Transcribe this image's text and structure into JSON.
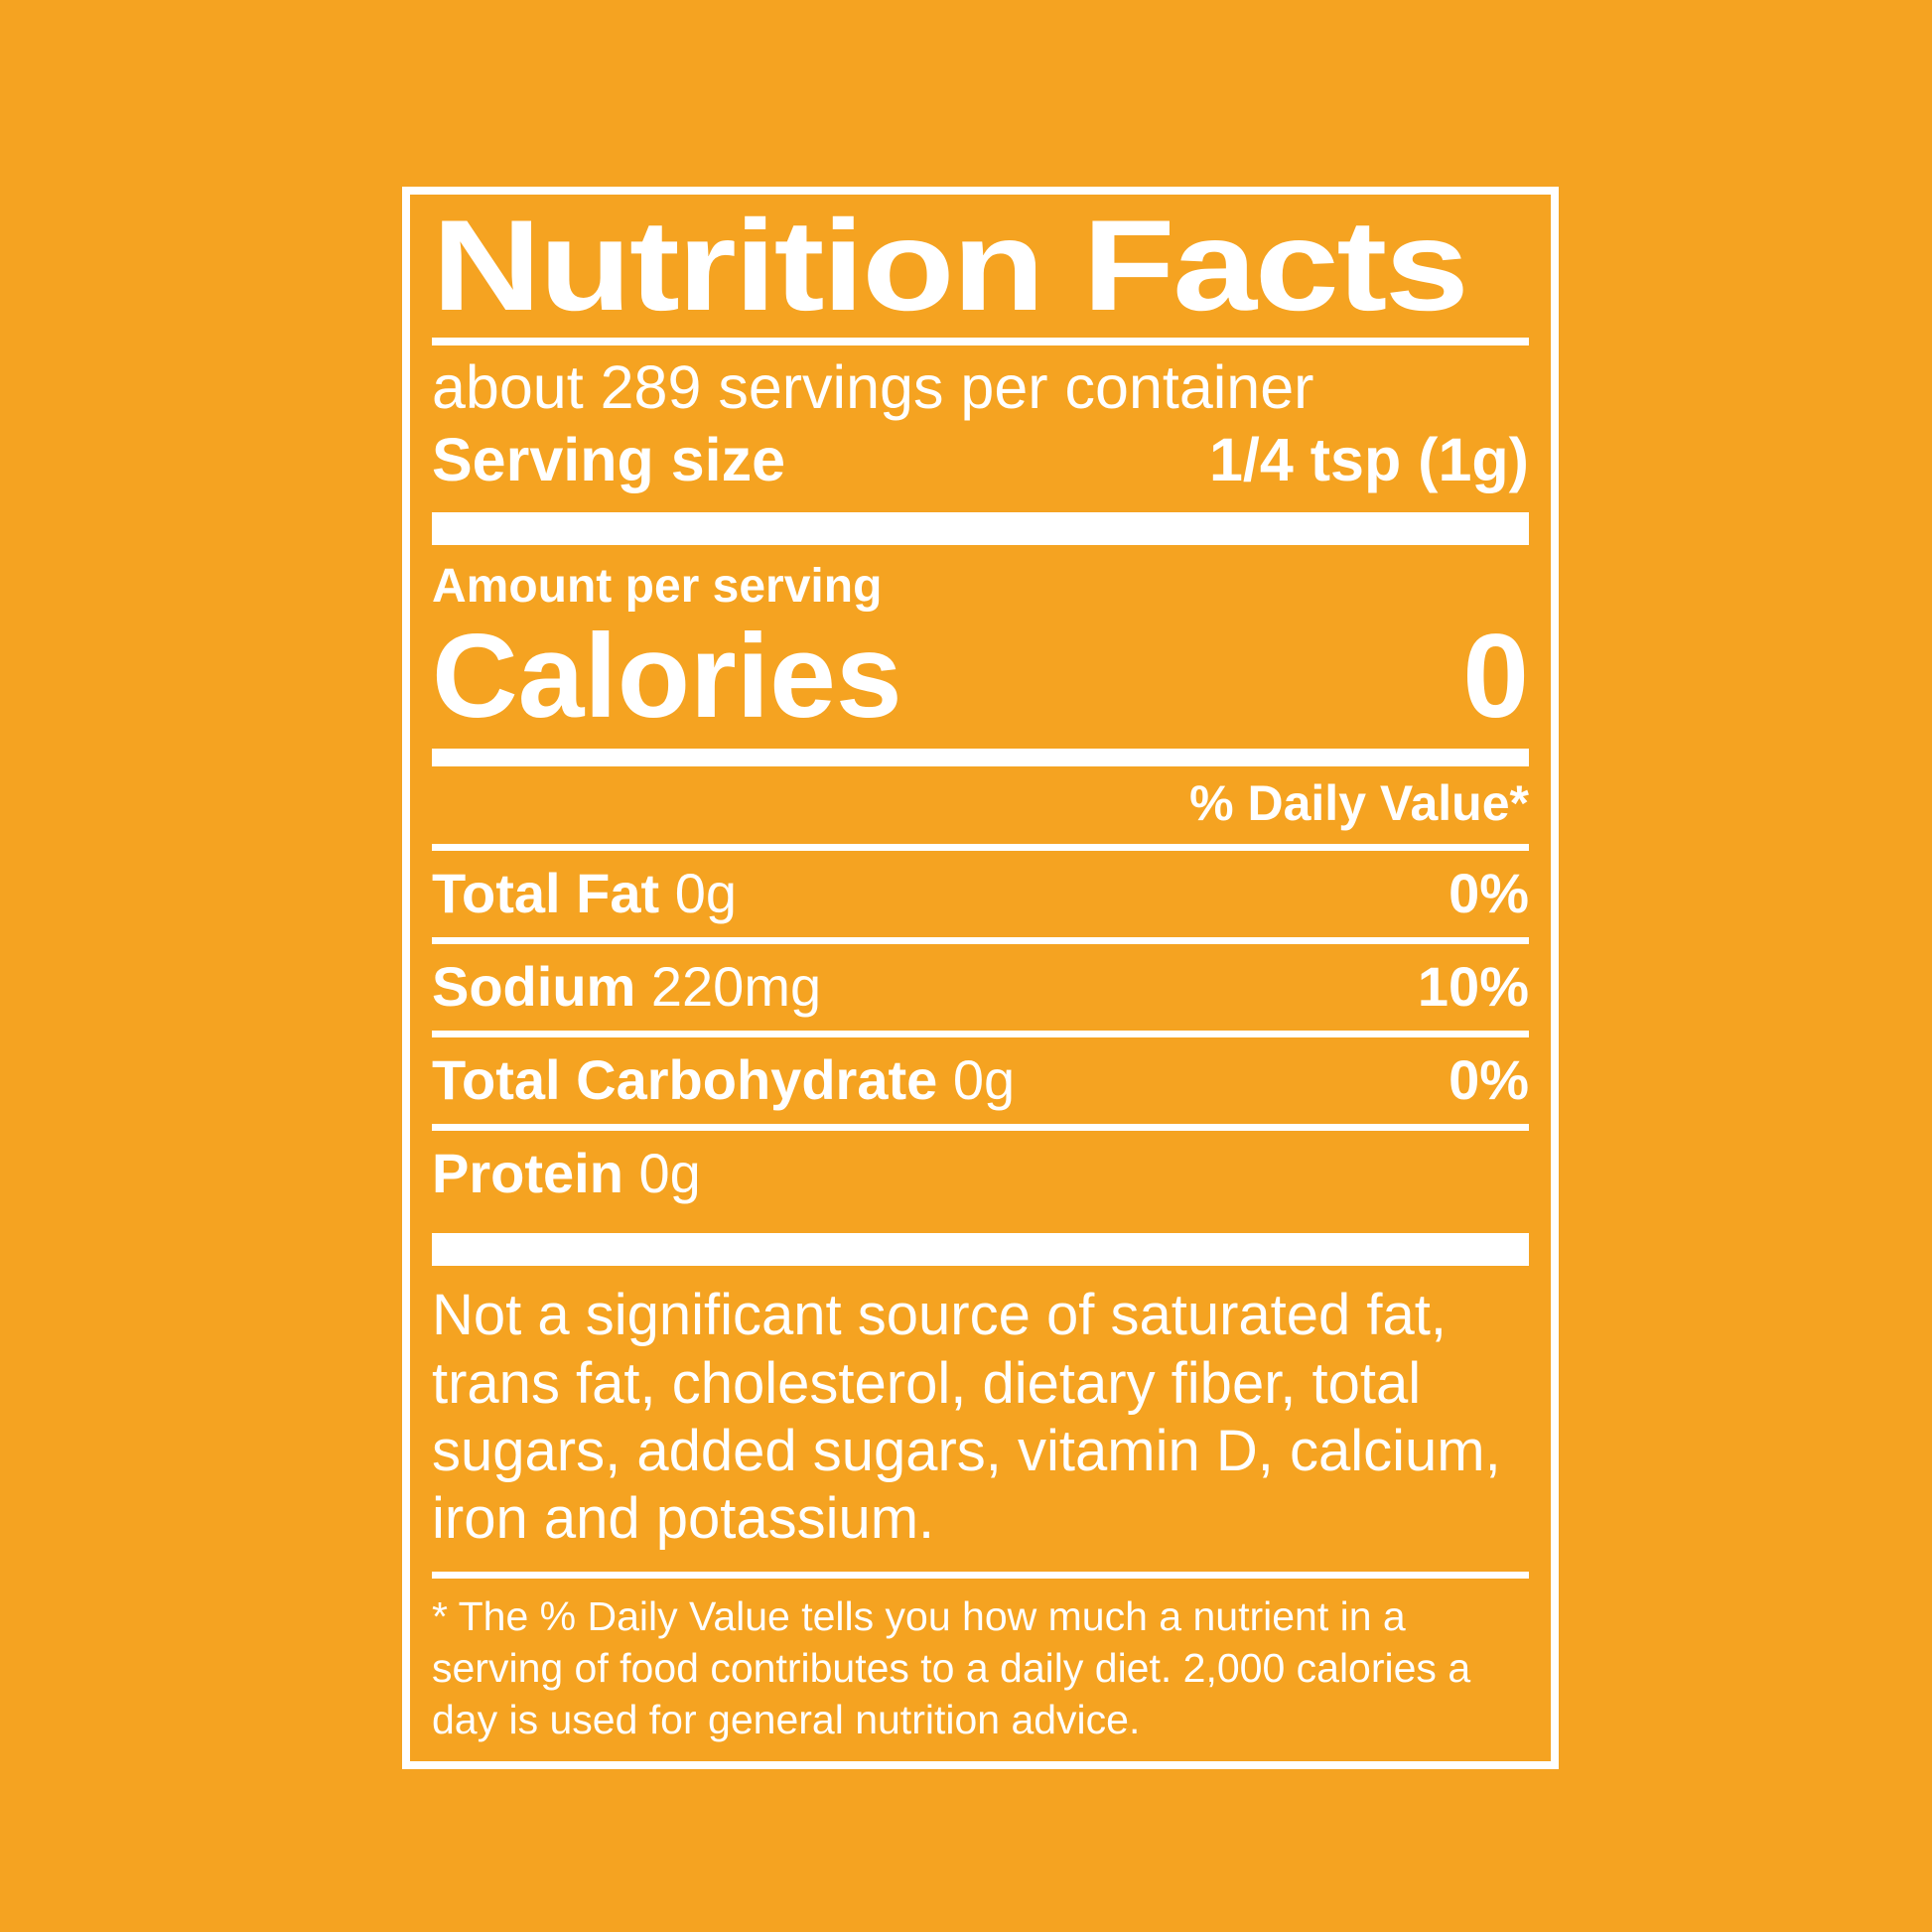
{
  "colors": {
    "background": "#F5A321",
    "foreground": "#FFFFFF"
  },
  "label": {
    "title": "Nutrition Facts",
    "servings_per_container": "about 289 servings per container",
    "serving_size_label": "Serving size",
    "serving_size_value": "1/4 tsp (1g)",
    "amount_per_serving": "Amount per serving",
    "calories_label": "Calories",
    "calories_value": "0",
    "daily_value_header": "% Daily Value*",
    "nutrients": [
      {
        "name": "Total Fat",
        "amount": "0g",
        "dv": "0%"
      },
      {
        "name": "Sodium",
        "amount": "220mg",
        "dv": "10%"
      },
      {
        "name": "Total Carbohydrate",
        "amount": "0g",
        "dv": "0%"
      },
      {
        "name": "Protein",
        "amount": "0g",
        "dv": ""
      }
    ],
    "not_significant_note": "Not a significant source of saturated fat, trans fat, cholesterol, dietary fiber, total sugars, added sugars, vitamin D, calcium, iron and potassium.",
    "footnote": "* The % Daily Value tells you how much a nutrient in a serving of food contributes to a daily diet. 2,000 calories a day is used for general nutrition advice."
  }
}
